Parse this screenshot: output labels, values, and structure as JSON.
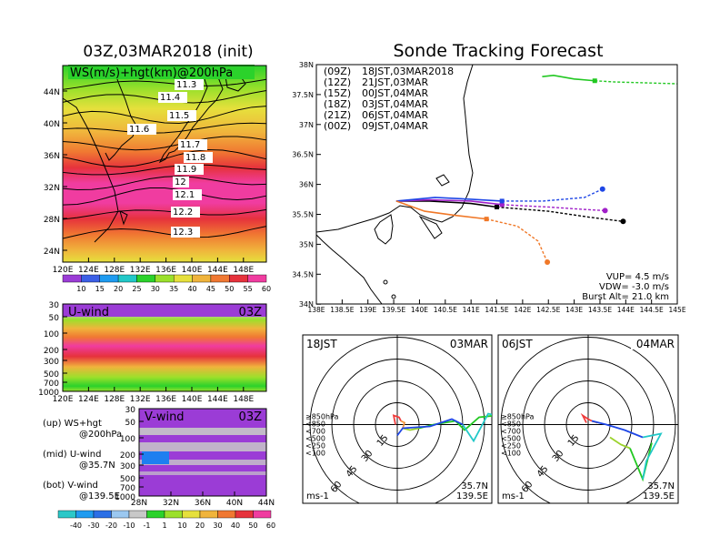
{
  "title_left": "03Z,03MAR2018 (init)",
  "title_right": "Sonde Tracking Forecast",
  "ws_panel": {
    "label": "WS(m/s)+hgt(km)@200hPa",
    "lat_ticks": [
      "44N",
      "40N",
      "36N",
      "32N",
      "28N",
      "24N"
    ],
    "lon_ticks": [
      "120E",
      "124E",
      "128E",
      "132E",
      "136E",
      "140E",
      "144E",
      "148E"
    ],
    "contour_labels": [
      "11.3",
      "11.4",
      "11.5",
      "11.6",
      "11.7",
      "11.8",
      "11.9",
      "12",
      "12.1",
      "12.2",
      "12.3"
    ],
    "colorbar_ticks": [
      "10",
      "15",
      "20",
      "25",
      "30",
      "35",
      "40",
      "45",
      "50",
      "55",
      "60"
    ],
    "colorbar_colors": [
      "#9b3cd6",
      "#3c5fe6",
      "#1f9bf0",
      "#22c8c8",
      "#2bd22b",
      "#9be02b",
      "#e6e03c",
      "#f0b43c",
      "#f07832",
      "#e6323c",
      "#f03ca0"
    ]
  },
  "u_panel": {
    "label": "U-wind",
    "time": "03Z",
    "p_ticks": [
      "30",
      "50",
      "100",
      "200",
      "300",
      "500",
      "700",
      "1000"
    ],
    "lon_ticks": [
      "120E",
      "124E",
      "128E",
      "132E",
      "136E",
      "140E",
      "144E",
      "148E"
    ]
  },
  "v_panel": {
    "label": "V-wind",
    "time": "03Z",
    "p_ticks": [
      "30",
      "50",
      "100",
      "200",
      "300",
      "500",
      "700",
      "1000"
    ],
    "lat_ticks": [
      "28N",
      "32N",
      "36N",
      "40N",
      "44N"
    ]
  },
  "legend_notes": [
    {
      "a": "(up)  WS+hgt",
      "b": "@200hPa"
    },
    {
      "a": "(mid)  U-wind",
      "b": "@35.7N"
    },
    {
      "a": "(bot)  V-wind",
      "b": "@139.5E"
    }
  ],
  "bottom_colorbar": {
    "ticks": [
      "-40",
      "-30",
      "-20",
      "-10",
      "-1",
      "1",
      "10",
      "20",
      "30",
      "40",
      "50",
      "60"
    ],
    "colors": [
      "#2bc8c8",
      "#1f9bf0",
      "#2b6fe6",
      "#9bc8f0",
      "#c8c8c8",
      "#2bd22b",
      "#9be02b",
      "#e6e03c",
      "#f0b43c",
      "#f07832",
      "#e6323c",
      "#f03ca0"
    ]
  },
  "track_panel": {
    "lat_ticks": [
      "38N",
      "37.5N",
      "37N",
      "36.5N",
      "36N",
      "35.5N",
      "35N",
      "34.5N",
      "34N"
    ],
    "lon_ticks": [
      "138E",
      "138.5E",
      "139E",
      "139.5E",
      "140E",
      "140.5E",
      "141E",
      "141.5E",
      "142E",
      "142.5E",
      "143E",
      "143.5E",
      "144E",
      "144.5E",
      "145E"
    ],
    "launches": [
      {
        "z": "(09Z)",
        "jst": "18JST,03MAR2018",
        "color": "#000000"
      },
      {
        "z": "(12Z)",
        "jst": "21JST,03MAR",
        "color": "#a020c8"
      },
      {
        "z": "(15Z)",
        "jst": "00JST,04MAR",
        "color": "#1e46e6"
      },
      {
        "z": "(18Z)",
        "jst": "03JST,04MAR",
        "color": "#22c822"
      },
      {
        "z": "(21Z)",
        "jst": "06JST,04MAR",
        "color": "#f0c828"
      },
      {
        "z": "(00Z)",
        "jst": "09JST,04MAR",
        "color": "#f07828"
      }
    ],
    "params": [
      "VUP=  4.5 m/s",
      "VDW= -3.0 m/s",
      "Burst Alt= 21.0 km"
    ]
  },
  "chart_data": {
    "type": "line",
    "x_label": "",
    "y_label": "",
    "xlim": [
      138,
      145
    ],
    "ylim": [
      34,
      38
    ],
    "series": [
      {
        "name": "(09Z) 18JST,03MAR2018",
        "color": "#000000",
        "x": [
          139.55,
          140.2,
          141.0,
          141.5,
          142.5,
          143.3,
          143.95
        ],
        "y": [
          35.72,
          35.72,
          35.68,
          35.62,
          35.55,
          35.45,
          35.38
        ]
      },
      {
        "name": "(12Z) 21JST,03MAR",
        "color": "#a020c8",
        "x": [
          139.55,
          140.2,
          141.0,
          141.6,
          142.5,
          143.2,
          143.6
        ],
        "y": [
          35.72,
          35.74,
          35.72,
          35.66,
          35.62,
          35.58,
          35.56
        ]
      },
      {
        "name": "(15Z) 00JST,04MAR",
        "color": "#1e46e6",
        "x": [
          139.55,
          140.3,
          141.0,
          141.6,
          142.4,
          143.2,
          143.55
        ],
        "y": [
          35.72,
          35.78,
          35.75,
          35.72,
          35.72,
          35.78,
          35.92
        ]
      },
      {
        "name": "(18Z) 03JST,04MAR",
        "color": "#22c822",
        "x": [
          142.38,
          142.6,
          143.0,
          143.4,
          143.8,
          144.2,
          144.6,
          145.0
        ],
        "y": [
          37.8,
          37.82,
          37.76,
          37.73,
          37.71,
          37.7,
          37.69,
          37.68
        ]
      },
      {
        "name": "(00Z) 09JST,04MAR",
        "color": "#f07828",
        "x": [
          139.55,
          140.1,
          140.7,
          141.3,
          141.9,
          142.3,
          142.48
        ],
        "y": [
          35.72,
          35.55,
          35.48,
          35.42,
          35.3,
          35.05,
          34.7
        ]
      }
    ]
  },
  "hodo_left": {
    "time": "18JST",
    "date": "03MAR",
    "lat": "35.7N",
    "lon": "139.5E",
    "unit": "ms-1",
    "rings": [
      "15",
      "30",
      "45",
      "60"
    ],
    "levels": [
      "≥850hPa",
      "<850",
      "<700",
      "<500",
      "<250",
      "<100"
    ],
    "level_colors": [
      "#f03c3c",
      "#f0963c",
      "#9bd22b",
      "#22c822",
      "#22c8c8",
      "#1e46e6"
    ]
  },
  "hodo_right": {
    "time": "06JST",
    "date": "04MAR",
    "lat": "35.7N",
    "lon": "139.5E",
    "unit": "ms-1",
    "rings": [
      "15",
      "30",
      "45",
      "60"
    ],
    "levels": [
      "≥850hPa",
      "<850",
      "<700",
      "<500",
      "<250",
      "<100"
    ],
    "level_colors": [
      "#f03c3c",
      "#f0963c",
      "#9bd22b",
      "#22c822",
      "#22c8c8",
      "#1e46e6"
    ]
  }
}
